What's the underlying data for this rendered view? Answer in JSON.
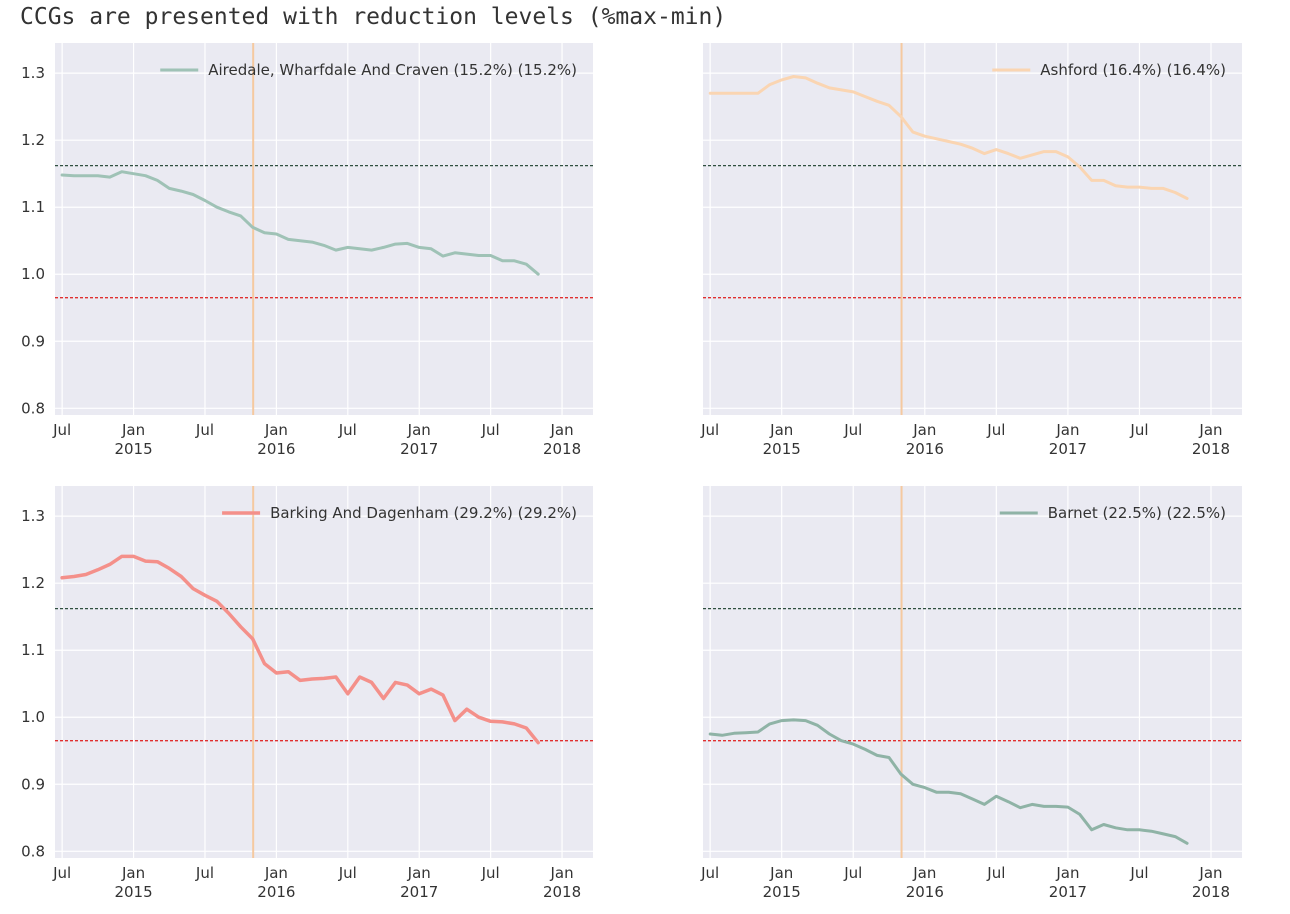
{
  "heading": "CCGs are presented with reduction levels (%max-min)",
  "colors": {
    "panel_bg": "#eaeaf2",
    "grid": "#ffffff",
    "upper_ref": "#2f4f3f",
    "lower_ref": "#e03030",
    "vertical_marker": "#f5c9a0"
  },
  "chart_data": [
    {
      "type": "line",
      "legend": "Airedale, Wharfdale And Craven (15.2%) (15.2%)",
      "legend_position": "top-right",
      "color": "#9fc2b6",
      "line_width": 3,
      "ylim": [
        0.79,
        1.345
      ],
      "yticks": [
        "0.8",
        "0.9",
        "1.0",
        "1.1",
        "1.2",
        "1.3"
      ],
      "show_yticks": true,
      "xticks": [
        [
          "Jul",
          ""
        ],
        [
          "Jan",
          "2015"
        ],
        [
          "Jul",
          ""
        ],
        [
          "Jan",
          "2016"
        ],
        [
          "Jul",
          ""
        ],
        [
          "Jan",
          "2017"
        ],
        [
          "Jul",
          ""
        ],
        [
          "Jan",
          "2018"
        ]
      ],
      "reference_lines": [
        1.162,
        0.965
      ],
      "vertical_marker": "2015-11",
      "x": [
        "2014-07",
        "2014-08",
        "2014-09",
        "2014-10",
        "2014-11",
        "2014-12",
        "2015-01",
        "2015-02",
        "2015-03",
        "2015-04",
        "2015-05",
        "2015-06",
        "2015-07",
        "2015-08",
        "2015-09",
        "2015-10",
        "2015-11",
        "2015-12",
        "2016-01",
        "2016-02",
        "2016-03",
        "2016-04",
        "2016-05",
        "2016-06",
        "2016-07",
        "2016-08",
        "2016-09",
        "2016-10",
        "2016-11",
        "2016-12",
        "2017-01",
        "2017-02",
        "2017-03",
        "2017-04",
        "2017-05",
        "2017-06",
        "2017-07",
        "2017-08",
        "2017-09",
        "2017-10",
        "2017-11"
      ],
      "y": [
        1.148,
        1.147,
        1.147,
        1.147,
        1.145,
        1.153,
        1.15,
        1.147,
        1.14,
        1.128,
        1.124,
        1.119,
        1.11,
        1.1,
        1.093,
        1.087,
        1.07,
        1.062,
        1.06,
        1.052,
        1.05,
        1.048,
        1.043,
        1.036,
        1.04,
        1.038,
        1.036,
        1.04,
        1.045,
        1.046,
        1.04,
        1.038,
        1.027,
        1.032,
        1.03,
        1.028,
        1.028,
        1.02,
        1.02,
        1.015,
        1.0
      ]
    },
    {
      "type": "line",
      "legend": "Ashford (16.4%) (16.4%)",
      "legend_position": "top-right",
      "color": "#fad5b2",
      "line_width": 3,
      "ylim": [
        0.79,
        1.345
      ],
      "yticks": [],
      "show_yticks": false,
      "xticks": [
        [
          "Jul",
          ""
        ],
        [
          "Jan",
          "2015"
        ],
        [
          "Jul",
          ""
        ],
        [
          "Jan",
          "2016"
        ],
        [
          "Jul",
          ""
        ],
        [
          "Jan",
          "2017"
        ],
        [
          "Jul",
          ""
        ],
        [
          "Jan",
          "2018"
        ]
      ],
      "reference_lines": [
        1.162,
        0.965
      ],
      "vertical_marker": "2015-11",
      "x": [
        "2014-07",
        "2014-08",
        "2014-09",
        "2014-10",
        "2014-11",
        "2014-12",
        "2015-01",
        "2015-02",
        "2015-03",
        "2015-04",
        "2015-05",
        "2015-06",
        "2015-07",
        "2015-08",
        "2015-09",
        "2015-10",
        "2015-11",
        "2015-12",
        "2016-01",
        "2016-02",
        "2016-03",
        "2016-04",
        "2016-05",
        "2016-06",
        "2016-07",
        "2016-08",
        "2016-09",
        "2016-10",
        "2016-11",
        "2016-12",
        "2017-01",
        "2017-02",
        "2017-03",
        "2017-04",
        "2017-05",
        "2017-06",
        "2017-07",
        "2017-08",
        "2017-09",
        "2017-10",
        "2017-11"
      ],
      "y": [
        1.27,
        1.27,
        1.27,
        1.27,
        1.27,
        1.283,
        1.29,
        1.295,
        1.293,
        1.285,
        1.278,
        1.275,
        1.272,
        1.265,
        1.258,
        1.252,
        1.235,
        1.212,
        1.206,
        1.202,
        1.198,
        1.194,
        1.188,
        1.18,
        1.186,
        1.18,
        1.173,
        1.178,
        1.183,
        1.183,
        1.175,
        1.16,
        1.14,
        1.14,
        1.132,
        1.13,
        1.13,
        1.128,
        1.128,
        1.122,
        1.113
      ]
    },
    {
      "type": "line",
      "legend": "Barking And Dagenham (29.2%) (29.2%)",
      "legend_position": "top-right",
      "color": "#f4908a",
      "line_width": 3.5,
      "ylim": [
        0.79,
        1.345
      ],
      "yticks": [
        "0.8",
        "0.9",
        "1.0",
        "1.1",
        "1.2",
        "1.3"
      ],
      "show_yticks": true,
      "xticks": [
        [
          "Jul",
          ""
        ],
        [
          "Jan",
          "2015"
        ],
        [
          "Jul",
          ""
        ],
        [
          "Jan",
          "2016"
        ],
        [
          "Jul",
          ""
        ],
        [
          "Jan",
          "2017"
        ],
        [
          "Jul",
          ""
        ],
        [
          "Jan",
          "2018"
        ]
      ],
      "reference_lines": [
        1.162,
        0.965
      ],
      "vertical_marker": "2015-11",
      "x": [
        "2014-07",
        "2014-08",
        "2014-09",
        "2014-10",
        "2014-11",
        "2014-12",
        "2015-01",
        "2015-02",
        "2015-03",
        "2015-04",
        "2015-05",
        "2015-06",
        "2015-07",
        "2015-08",
        "2015-09",
        "2015-10",
        "2015-11",
        "2015-12",
        "2016-01",
        "2016-02",
        "2016-03",
        "2016-04",
        "2016-05",
        "2016-06",
        "2016-07",
        "2016-08",
        "2016-09",
        "2016-10",
        "2016-11",
        "2016-12",
        "2017-01",
        "2017-02",
        "2017-03",
        "2017-04",
        "2017-05",
        "2017-06",
        "2017-07",
        "2017-08",
        "2017-09",
        "2017-10",
        "2017-11"
      ],
      "y": [
        1.208,
        1.21,
        1.213,
        1.22,
        1.228,
        1.24,
        1.24,
        1.233,
        1.232,
        1.222,
        1.21,
        1.192,
        1.182,
        1.173,
        1.155,
        1.135,
        1.117,
        1.08,
        1.066,
        1.068,
        1.055,
        1.057,
        1.058,
        1.06,
        1.035,
        1.06,
        1.052,
        1.028,
        1.052,
        1.048,
        1.035,
        1.042,
        1.033,
        0.995,
        1.012,
        1.0,
        0.994,
        0.993,
        0.99,
        0.984,
        0.962
      ]
    },
    {
      "type": "line",
      "legend": "Barnet (22.5%) (22.5%)",
      "legend_position": "top-right",
      "color": "#8fb3a6",
      "line_width": 3,
      "ylim": [
        0.79,
        1.345
      ],
      "yticks": [],
      "show_yticks": false,
      "xticks": [
        [
          "Jul",
          ""
        ],
        [
          "Jan",
          "2015"
        ],
        [
          "Jul",
          ""
        ],
        [
          "Jan",
          "2016"
        ],
        [
          "Jul",
          ""
        ],
        [
          "Jan",
          "2017"
        ],
        [
          "Jul",
          ""
        ],
        [
          "Jan",
          "2018"
        ]
      ],
      "reference_lines": [
        1.162,
        0.965
      ],
      "vertical_marker": "2015-11",
      "x": [
        "2014-07",
        "2014-08",
        "2014-09",
        "2014-10",
        "2014-11",
        "2014-12",
        "2015-01",
        "2015-02",
        "2015-03",
        "2015-04",
        "2015-05",
        "2015-06",
        "2015-07",
        "2015-08",
        "2015-09",
        "2015-10",
        "2015-11",
        "2015-12",
        "2016-01",
        "2016-02",
        "2016-03",
        "2016-04",
        "2016-05",
        "2016-06",
        "2016-07",
        "2016-08",
        "2016-09",
        "2016-10",
        "2016-11",
        "2016-12",
        "2017-01",
        "2017-02",
        "2017-03",
        "2017-04",
        "2017-05",
        "2017-06",
        "2017-07",
        "2017-08",
        "2017-09",
        "2017-10",
        "2017-11"
      ],
      "y": [
        0.975,
        0.973,
        0.976,
        0.977,
        0.978,
        0.99,
        0.995,
        0.996,
        0.995,
        0.988,
        0.975,
        0.965,
        0.96,
        0.952,
        0.943,
        0.94,
        0.915,
        0.9,
        0.895,
        0.888,
        0.888,
        0.886,
        0.878,
        0.87,
        0.882,
        0.874,
        0.865,
        0.87,
        0.867,
        0.867,
        0.866,
        0.855,
        0.832,
        0.84,
        0.835,
        0.832,
        0.832,
        0.83,
        0.826,
        0.822,
        0.812
      ]
    }
  ]
}
